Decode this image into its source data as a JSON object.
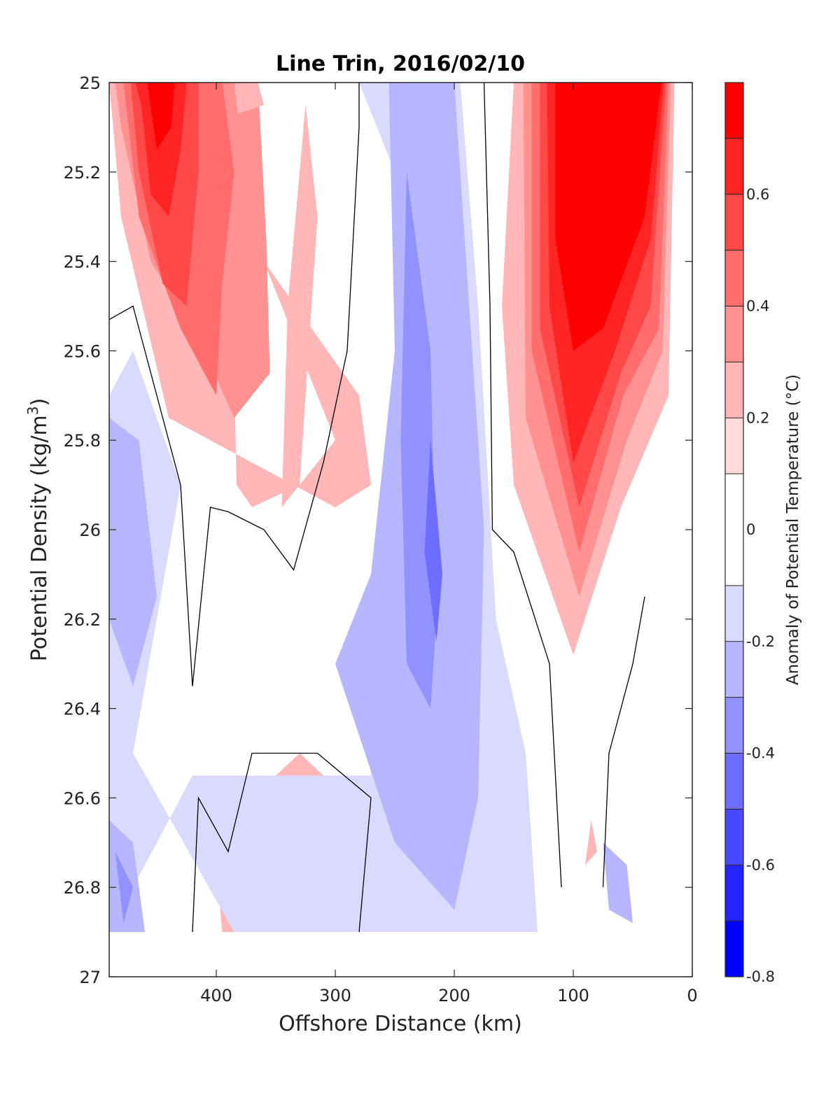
{
  "chart_data": {
    "type": "contour",
    "title": "Line Trin, 2016/02/10",
    "xlabel": "Offshore Distance (km)",
    "ylabel_main": "Potential Density (kg/m",
    "ylabel_sup": "3",
    "ylabel_close": ")",
    "xlim": [
      490,
      0
    ],
    "ylim": [
      25,
      27
    ],
    "x_ticks": [
      400,
      300,
      200,
      100,
      0
    ],
    "y_ticks": [
      25,
      25.2,
      25.4,
      25.6,
      25.8,
      26,
      26.2,
      26.4,
      26.6,
      26.8,
      27
    ],
    "y_tick_labels": [
      "25",
      "25.2",
      "25.4",
      "25.6",
      "25.8",
      "26",
      "26.2",
      "26.4",
      "26.6",
      "26.8",
      "27"
    ],
    "colorbar": {
      "label": "Anomaly of Potential Temperature (°C)",
      "levels": [
        -0.8,
        -0.7,
        -0.6,
        -0.5,
        -0.4,
        -0.3,
        -0.2,
        -0.1,
        0.1,
        0.2,
        0.3,
        0.4,
        0.5,
        0.6,
        0.7,
        0.8
      ],
      "colors": [
        "#0000ff",
        "#2424ff",
        "#4848ff",
        "#6d6dff",
        "#9191ff",
        "#b6b6ff",
        "#dadaff",
        "#ffffff",
        "#ffdada",
        "#ffb6b6",
        "#ff9191",
        "#ff6d6d",
        "#ff4848",
        "#ff2424",
        "#ff0000"
      ],
      "tick_values": [
        -0.8,
        -0.6,
        -0.4,
        -0.2,
        0,
        0.2,
        0.4,
        0.6
      ],
      "tick_labels": [
        "-0.8",
        "-0.6",
        "-0.4",
        "-0.2",
        "0",
        "0.2",
        "0.4",
        "0.6"
      ]
    },
    "features": [
      {
        "kind": "warm",
        "level": 0.2,
        "points": [
          [
            490,
            25
          ],
          [
            390,
            25
          ],
          [
            383,
            25.9
          ],
          [
            370,
            25.95
          ],
          [
            330,
            25.9
          ],
          [
            300,
            25.8
          ],
          [
            330,
            25.6
          ],
          [
            360,
            25.4
          ],
          [
            280,
            25.7
          ],
          [
            270,
            25.9
          ],
          [
            300,
            25.95
          ],
          [
            440,
            25.75
          ],
          [
            480,
            25.3
          ]
        ]
      },
      {
        "kind": "warm",
        "level": 0.3,
        "points": [
          [
            485,
            25
          ],
          [
            365,
            25
          ],
          [
            358,
            25.35
          ],
          [
            355,
            25.65
          ],
          [
            385,
            25.75
          ],
          [
            410,
            25.6
          ],
          [
            455,
            25.4
          ],
          [
            480,
            25.1
          ]
        ]
      },
      {
        "kind": "warm",
        "level": 0.4,
        "points": [
          [
            478,
            25
          ],
          [
            395,
            25
          ],
          [
            385,
            25.2
          ],
          [
            395,
            25.45
          ],
          [
            400,
            25.7
          ],
          [
            430,
            25.55
          ],
          [
            465,
            25.3
          ]
        ]
      },
      {
        "kind": "warm",
        "level": 0.5,
        "points": [
          [
            472,
            25
          ],
          [
            415,
            25
          ],
          [
            415,
            25.2
          ],
          [
            425,
            25.5
          ],
          [
            445,
            25.45
          ],
          [
            465,
            25.2
          ]
        ]
      },
      {
        "kind": "warm",
        "level": 0.6,
        "points": [
          [
            468,
            25
          ],
          [
            425,
            25
          ],
          [
            430,
            25.15
          ],
          [
            440,
            25.3
          ],
          [
            455,
            25.25
          ],
          [
            463,
            25.05
          ]
        ]
      },
      {
        "kind": "warm",
        "level": 0.7,
        "points": [
          [
            458,
            25
          ],
          [
            435,
            25
          ],
          [
            438,
            25.1
          ],
          [
            450,
            25.15
          ]
        ]
      },
      {
        "kind": "warm",
        "level": 0.2,
        "points": [
          [
            385,
            25
          ],
          [
            365,
            25
          ],
          [
            360,
            25.05
          ],
          [
            382,
            25.07
          ]
        ]
      },
      {
        "kind": "warm",
        "level": 0.2,
        "points": [
          [
            325,
            25.05
          ],
          [
            315,
            25.3
          ],
          [
            330,
            25.9
          ],
          [
            345,
            25.95
          ],
          [
            340,
            25.5
          ]
        ]
      },
      {
        "kind": "warm",
        "level": 0.2,
        "points": [
          [
            150,
            25
          ],
          [
            15,
            25
          ],
          [
            20,
            25.7
          ],
          [
            60,
            25.95
          ],
          [
            100,
            26.28
          ],
          [
            150,
            25.9
          ],
          [
            160,
            25.5
          ]
        ]
      },
      {
        "kind": "warm",
        "level": 0.3,
        "points": [
          [
            142,
            25
          ],
          [
            18,
            25
          ],
          [
            25,
            25.6
          ],
          [
            55,
            25.8
          ],
          [
            95,
            26.15
          ],
          [
            140,
            25.75
          ]
        ]
      },
      {
        "kind": "warm",
        "level": 0.4,
        "points": [
          [
            135,
            25
          ],
          [
            20,
            25
          ],
          [
            28,
            25.55
          ],
          [
            58,
            25.7
          ],
          [
            95,
            26.05
          ],
          [
            135,
            25.6
          ]
        ]
      },
      {
        "kind": "warm",
        "level": 0.5,
        "points": [
          [
            128,
            25
          ],
          [
            22,
            25
          ],
          [
            35,
            25.5
          ],
          [
            60,
            25.65
          ],
          [
            95,
            25.95
          ],
          [
            128,
            25.55
          ]
        ]
      },
      {
        "kind": "warm",
        "level": 0.6,
        "points": [
          [
            122,
            25
          ],
          [
            24,
            25
          ],
          [
            35,
            25.35
          ],
          [
            65,
            25.6
          ],
          [
            100,
            25.85
          ],
          [
            120,
            25.5
          ]
        ]
      },
      {
        "kind": "warm",
        "level": 0.7,
        "points": [
          [
            115,
            25
          ],
          [
            26,
            25
          ],
          [
            40,
            25.3
          ],
          [
            75,
            25.55
          ],
          [
            100,
            25.6
          ],
          [
            115,
            25.35
          ]
        ]
      },
      {
        "kind": "warm",
        "level": 0.2,
        "points": [
          [
            350,
            26.55
          ],
          [
            330,
            26.5
          ],
          [
            290,
            26.6
          ],
          [
            280,
            26.8
          ],
          [
            290,
            26.9
          ],
          [
            395,
            26.9
          ],
          [
            400,
            26.75
          ]
        ]
      },
      {
        "kind": "warm",
        "level": 0.3,
        "points": [
          [
            330,
            26.65
          ],
          [
            310,
            26.7
          ],
          [
            320,
            26.85
          ],
          [
            340,
            26.8
          ]
        ]
      },
      {
        "kind": "warm",
        "level": 0.2,
        "points": [
          [
            85,
            26.65
          ],
          [
            80,
            26.72
          ],
          [
            90,
            26.75
          ]
        ]
      },
      {
        "kind": "cold",
        "level": -0.2,
        "points": [
          [
            280,
            25
          ],
          [
            195,
            25
          ],
          [
            180,
            25.5
          ],
          [
            165,
            26.2
          ],
          [
            140,
            26.5
          ],
          [
            130,
            26.9
          ],
          [
            385,
            26.9
          ],
          [
            470,
            26.5
          ],
          [
            430,
            25.9
          ],
          [
            470,
            25.6
          ],
          [
            490,
            25.7
          ],
          [
            490,
            26.9
          ],
          [
            420,
            26.55
          ],
          [
            270,
            26.55
          ],
          [
            265,
            26.1
          ],
          [
            240,
            25.6
          ],
          [
            250,
            25.2
          ]
        ]
      },
      {
        "kind": "cold",
        "level": -0.3,
        "points": [
          [
            255,
            25
          ],
          [
            200,
            25
          ],
          [
            190,
            25.4
          ],
          [
            175,
            26.0
          ],
          [
            180,
            26.6
          ],
          [
            200,
            26.85
          ],
          [
            250,
            26.7
          ],
          [
            300,
            26.3
          ],
          [
            270,
            26.1
          ],
          [
            250,
            25.6
          ]
        ]
      },
      {
        "kind": "cold",
        "level": -0.4,
        "points": [
          [
            240,
            25.2
          ],
          [
            220,
            25.6
          ],
          [
            215,
            26.2
          ],
          [
            220,
            26.4
          ],
          [
            240,
            26.3
          ],
          [
            245,
            25.8
          ]
        ]
      },
      {
        "kind": "cold",
        "level": -0.5,
        "points": [
          [
            220,
            25.8
          ],
          [
            210,
            26.1
          ],
          [
            215,
            26.25
          ],
          [
            225,
            26.05
          ]
        ]
      },
      {
        "kind": "cold",
        "level": -0.3,
        "points": [
          [
            490,
            25.75
          ],
          [
            465,
            25.8
          ],
          [
            450,
            26.15
          ],
          [
            470,
            26.35
          ],
          [
            490,
            26.2
          ]
        ]
      },
      {
        "kind": "cold",
        "level": -0.3,
        "points": [
          [
            490,
            26.65
          ],
          [
            470,
            26.7
          ],
          [
            460,
            26.9
          ],
          [
            490,
            26.9
          ]
        ]
      },
      {
        "kind": "cold",
        "level": -0.4,
        "points": [
          [
            485,
            26.72
          ],
          [
            470,
            26.8
          ],
          [
            478,
            26.88
          ]
        ]
      },
      {
        "kind": "cold",
        "level": -0.3,
        "points": [
          [
            75,
            26.7
          ],
          [
            55,
            26.75
          ],
          [
            50,
            26.88
          ],
          [
            70,
            26.85
          ]
        ]
      }
    ],
    "zero_contours": [
      {
        "points": [
          [
            490,
            25.53
          ],
          [
            470,
            25.5
          ],
          [
            430,
            25.9
          ],
          [
            420,
            26.35
          ],
          [
            405,
            25.95
          ],
          [
            390,
            25.96
          ],
          [
            360,
            26.0
          ],
          [
            335,
            26.09
          ],
          [
            310,
            25.85
          ],
          [
            290,
            25.6
          ],
          [
            280,
            25.1
          ],
          [
            280,
            25
          ]
        ]
      },
      {
        "points": [
          [
            175,
            25
          ],
          [
            170,
            25.5
          ],
          [
            168,
            26.0
          ],
          [
            150,
            26.05
          ],
          [
            120,
            26.3
          ],
          [
            110,
            26.8
          ]
        ]
      },
      {
        "points": [
          [
            420,
            26.9
          ],
          [
            415,
            26.6
          ],
          [
            390,
            26.72
          ],
          [
            370,
            26.5
          ],
          [
            315,
            26.5
          ],
          [
            270,
            26.6
          ],
          [
            280,
            26.9
          ]
        ]
      },
      {
        "points": [
          [
            75,
            26.8
          ],
          [
            70,
            26.5
          ],
          [
            50,
            26.3
          ],
          [
            40,
            26.15
          ]
        ]
      }
    ]
  }
}
